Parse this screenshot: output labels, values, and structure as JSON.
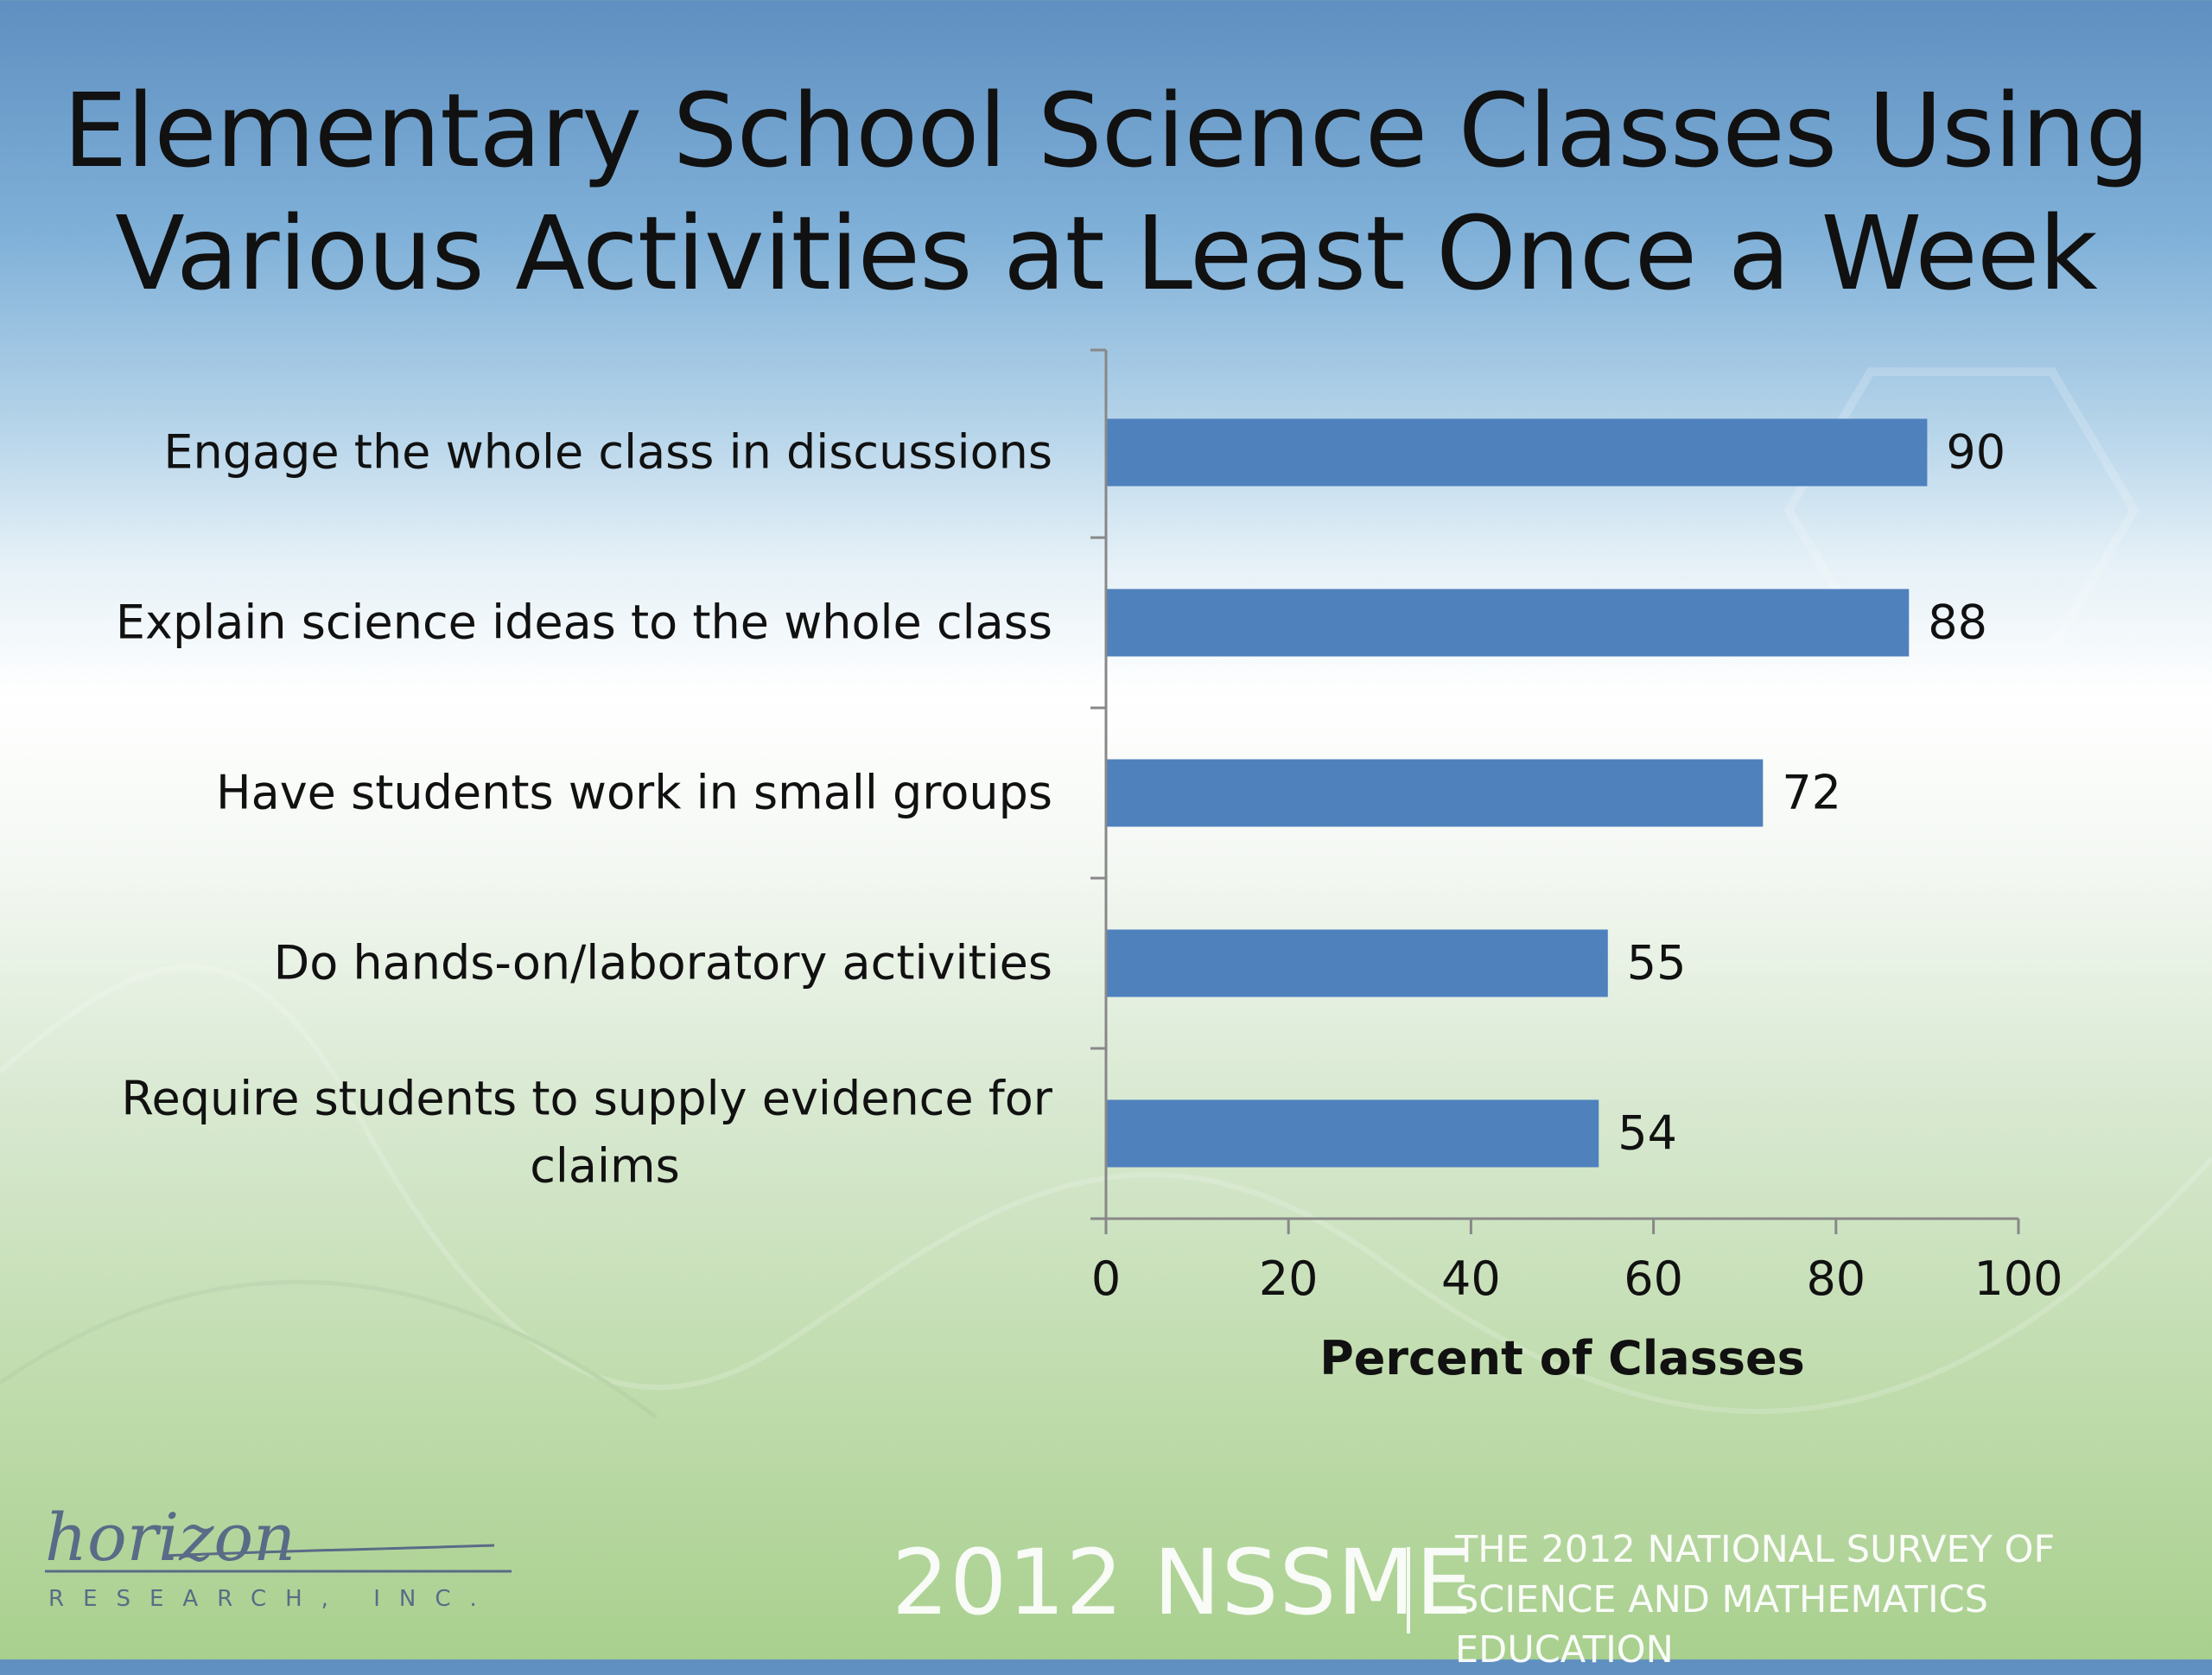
{
  "page": {
    "title_line1": "Elementary School Science Classes Using",
    "title_line2": "Various Activities at Least Once a Week"
  },
  "chart_data": {
    "type": "bar",
    "orientation": "horizontal",
    "title": "Elementary School Science Classes Using Various Activities at Least Once a Week",
    "categories": [
      "Engage the whole class in discussions",
      "Explain science ideas to the whole class",
      "Have students work in small groups",
      "Do hands-on/laboratory activities",
      "Require students to supply evidence for claims"
    ],
    "values": [
      90,
      88,
      72,
      55,
      54
    ],
    "xlabel": "Percent of Classes",
    "ylabel": "",
    "xlim": [
      0,
      100
    ],
    "xticks": [
      0,
      20,
      40,
      60,
      80,
      100
    ],
    "data_labels": true,
    "grid": false,
    "bar_color": "#4f81bd"
  },
  "footer": {
    "logo_word": "horizon",
    "logo_sub": "RESEARCH, INC.",
    "mark": "2012 NSSME",
    "sub_line1": "THE 2012 NATIONAL SURVEY OF",
    "sub_line2": "SCIENCE AND MATHEMATICS EDUCATION"
  }
}
